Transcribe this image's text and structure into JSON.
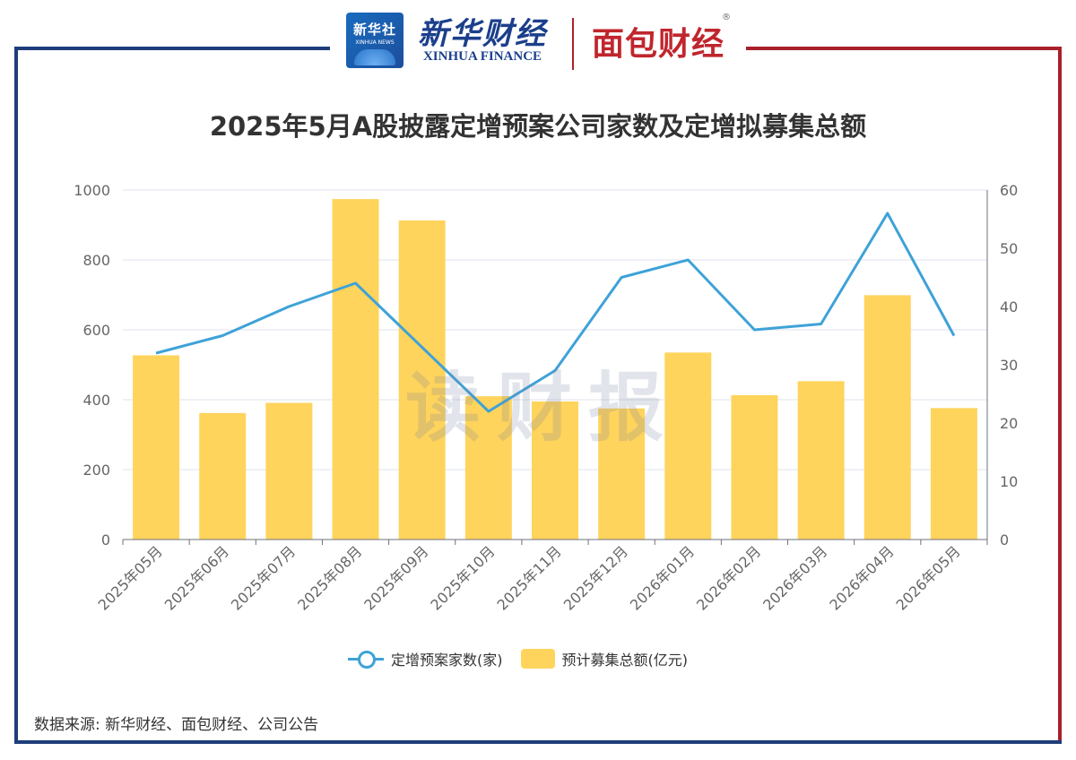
{
  "header": {
    "logo_xinhua_cn": "新华社",
    "logo_xinhua_en": "XINHUA NEWS",
    "brand_cn": "新华财经",
    "brand_en": "XINHUA FINANCE",
    "brand2": "面包财经",
    "brand2_reg": "®"
  },
  "watermark": "读财报",
  "source_note": "数据来源: 新华财经、面包财经、公司公告",
  "colors": {
    "bar": "#ffd45c",
    "line": "#3ea2d8",
    "frame_blue": "#1f3d7a",
    "frame_red": "#a8202a"
  },
  "chart_data": {
    "type": "bar",
    "title": "2025年5月A股披露定增预案公司家数及定增拟募集总额",
    "categories": [
      "2025年05月",
      "2025年06月",
      "2025年07月",
      "2025年08月",
      "2025年09月",
      "2025年10月",
      "2025年11月",
      "2025年12月",
      "2026年01月",
      "2026年02月",
      "2026年03月",
      "2026年04月",
      "2026年05月"
    ],
    "left_axis": {
      "ticks": [
        0,
        200,
        400,
        600,
        800,
        1000
      ],
      "ylim": [
        0,
        1000
      ]
    },
    "right_axis": {
      "ticks": [
        0,
        10,
        20,
        30,
        40,
        50,
        60
      ],
      "ylim": [
        0,
        60
      ]
    },
    "series": [
      {
        "name": "预计募集总额(亿元)",
        "type": "bar",
        "axis": "left",
        "values": [
          527,
          362,
          391,
          974,
          913,
          410,
          395,
          375,
          535,
          413,
          453,
          699,
          376
        ]
      },
      {
        "name": "定增预案家数(家)",
        "type": "line",
        "axis": "right",
        "values": [
          32,
          35,
          40,
          44,
          33,
          22,
          29,
          45,
          48,
          36,
          37,
          56,
          35
        ]
      }
    ],
    "grid": true,
    "legend_position": "bottom"
  }
}
